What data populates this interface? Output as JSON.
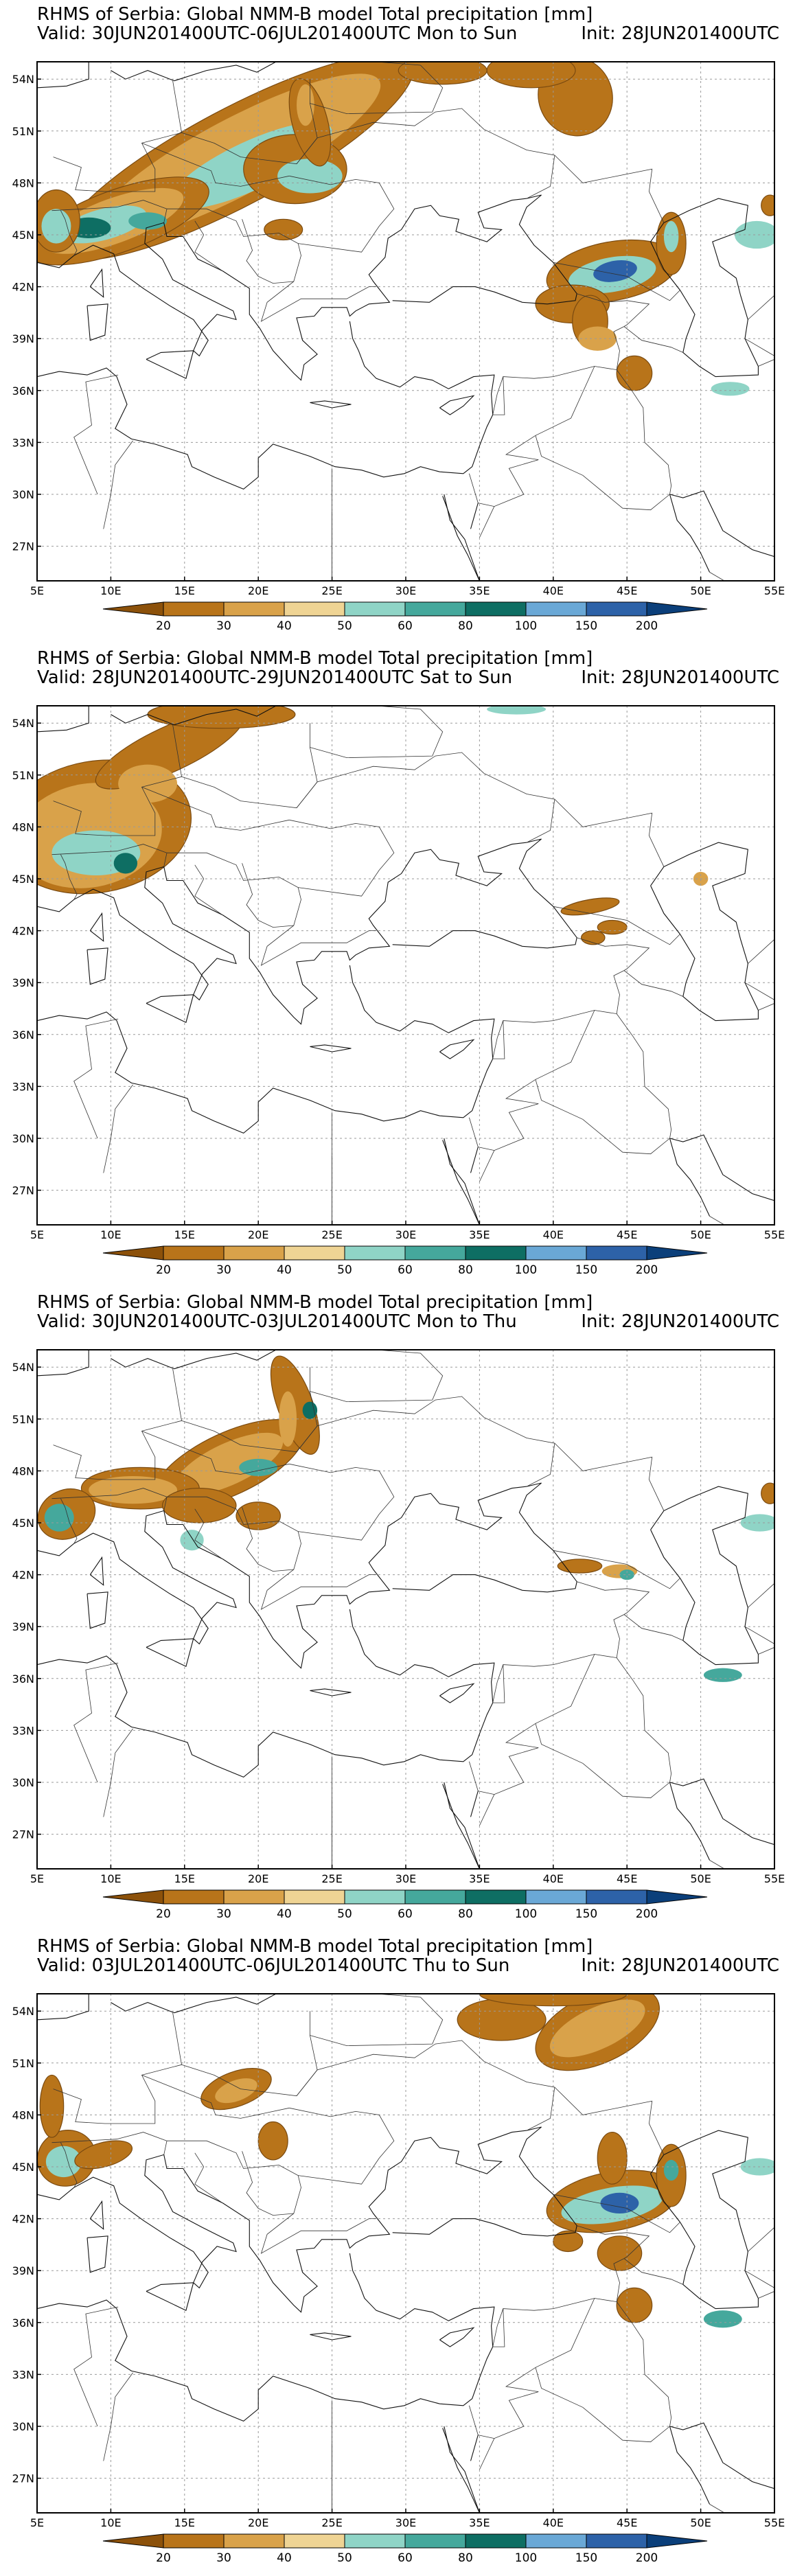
{
  "panels": [
    {
      "title": "RHMS of Serbia: Global NMM-B model Total precipitation [mm]",
      "valid": "Valid: 30JUN201400UTC-06JUL201400UTC Mon to Sun",
      "init": "Init: 28JUN201400UTC"
    },
    {
      "title": "RHMS of Serbia: Global NMM-B model Total precipitation [mm]",
      "valid": "Valid: 28JUN201400UTC-29JUN201400UTC Sat to Sun",
      "init": "Init: 28JUN201400UTC"
    },
    {
      "title": "RHMS of Serbia: Global NMM-B model Total precipitation [mm]",
      "valid": "Valid: 30JUN201400UTC-03JUL201400UTC Mon to Thu",
      "init": "Init: 28JUN201400UTC"
    },
    {
      "title": "RHMS of Serbia: Global NMM-B model Total precipitation [mm]",
      "valid": "Valid: 03JUL201400UTC-06JUL201400UTC Thu to Sun",
      "init": "Init: 28JUN201400UTC"
    }
  ],
  "lon_labels": [
    "5E",
    "10E",
    "15E",
    "20E",
    "25E",
    "30E",
    "35E",
    "40E",
    "45E",
    "50E",
    "55E"
  ],
  "lat_labels": [
    "54N",
    "51N",
    "48N",
    "45N",
    "42N",
    "39N",
    "36N",
    "33N",
    "30N",
    "27N"
  ],
  "colorbar": {
    "labels": [
      "20",
      "30",
      "40",
      "50",
      "60",
      "80",
      "100",
      "150",
      "200"
    ],
    "colors": [
      "#8c510a",
      "#b8741a",
      "#d9a24a",
      "#efd494",
      "#8fd4c6",
      "#45a89c",
      "#0e6e63",
      "#6aa8d6",
      "#2d62a8",
      "#0b3f7a"
    ]
  },
  "map": {
    "lon_range": [
      5,
      55
    ],
    "lat_range": [
      25,
      55
    ],
    "precip_palette": [
      "#b8741a",
      "#d9a24a",
      "#8fd4c6",
      "#45a89c",
      "#0e6e63",
      "#2d62a8"
    ]
  }
}
